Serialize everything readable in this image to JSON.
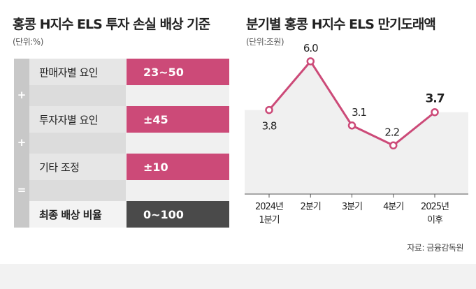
{
  "left": {
    "title": "홍콩 H지수 ELS 투자 손실 배상 기준",
    "unit": "(단위:%)",
    "rows": [
      {
        "label": "판매자별 요인",
        "value": "23~50"
      },
      {
        "label": "투자자별 요인",
        "value": "±45"
      },
      {
        "label": "기타 조정",
        "value": "±10"
      },
      {
        "label": "최종 배상 비율",
        "value": "0~100"
      }
    ],
    "operators": [
      "+",
      "+",
      "="
    ]
  },
  "right": {
    "title": "분기별 홍콩 H지수 ELS 만기도래액",
    "unit": "(단위:조원)",
    "source": "자료: 금융감독원"
  },
  "chart_data": {
    "type": "line",
    "categories": [
      [
        "2024년",
        "1분기"
      ],
      [
        "2분기"
      ],
      [
        "3분기"
      ],
      [
        "4분기"
      ],
      [
        "2025년",
        "이후"
      ]
    ],
    "values": [
      3.8,
      6.0,
      3.1,
      2.2,
      3.7
    ],
    "labels": [
      "3.8",
      "6.0",
      "3.1",
      "2.2",
      "3.7"
    ],
    "ylim": [
      0,
      6.5
    ],
    "line_color": "#cc4a78",
    "fill_color": "#f0f0f0",
    "grid": false,
    "title": "분기별 홍콩 H지수 ELS 만기도래액",
    "ylabel": "(단위:조원)"
  }
}
